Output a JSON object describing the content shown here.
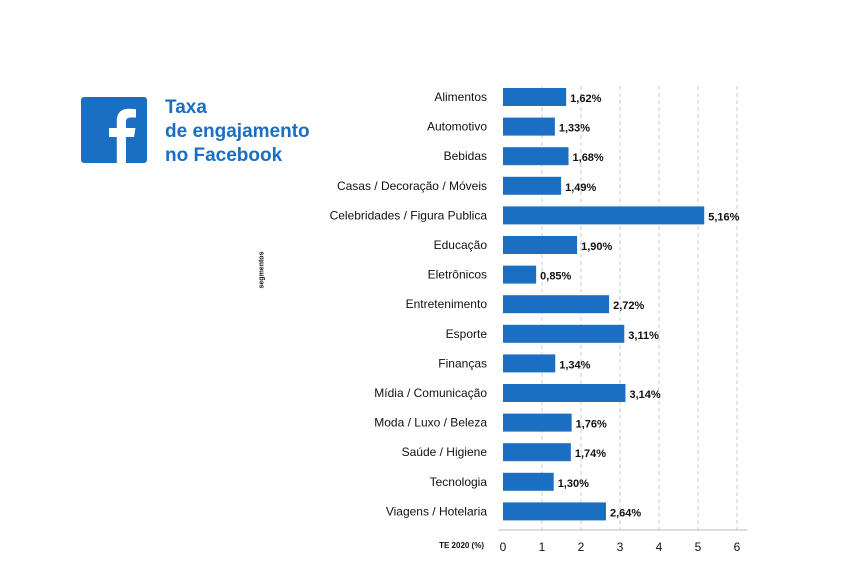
{
  "header": {
    "title_lines": [
      "Taxa",
      "de engajamento",
      "no Facebook"
    ],
    "logo_icon": "facebook-logo-icon"
  },
  "colors": {
    "bar": "#1b6fc2",
    "brand": "#1b6fc2",
    "grid": "#cccccc",
    "text": "#111111"
  },
  "chart_data": {
    "type": "bar",
    "orientation": "horizontal",
    "title": "Taxa de engajamento no Facebook",
    "xlabel": "TE 2020 (%)",
    "ylabel": "segmentos",
    "xlim": [
      0,
      6
    ],
    "xticks": [
      0,
      1,
      2,
      3,
      4,
      5,
      6
    ],
    "grid": "vertical-dashed",
    "legend": "none",
    "categories": [
      "Alimentos",
      "Automotivo",
      "Bebidas",
      "Casas / Decoração / Móveis",
      "Celebridades / Figura Publica",
      "Educação",
      "Eletrônicos",
      "Entretenimento",
      "Esporte",
      "Finanças",
      "Mídia / Comunicação",
      "Moda / Luxo / Beleza",
      "Saúde / Higiene",
      "Tecnologia",
      "Viagens / Hotelaria"
    ],
    "values": [
      1.62,
      1.33,
      1.68,
      1.49,
      5.16,
      1.9,
      0.85,
      2.72,
      3.11,
      1.34,
      3.14,
      1.76,
      1.74,
      1.3,
      2.64
    ],
    "data_labels": [
      "1,62%",
      "1,33%",
      "1,68%",
      "1,49%",
      "5,16%",
      "1,90%",
      "0,85%",
      "2,72%",
      "3,11%",
      "1,34%",
      "3,14%",
      "1,76%",
      "1,74%",
      "1,30%",
      "2,64%"
    ]
  }
}
